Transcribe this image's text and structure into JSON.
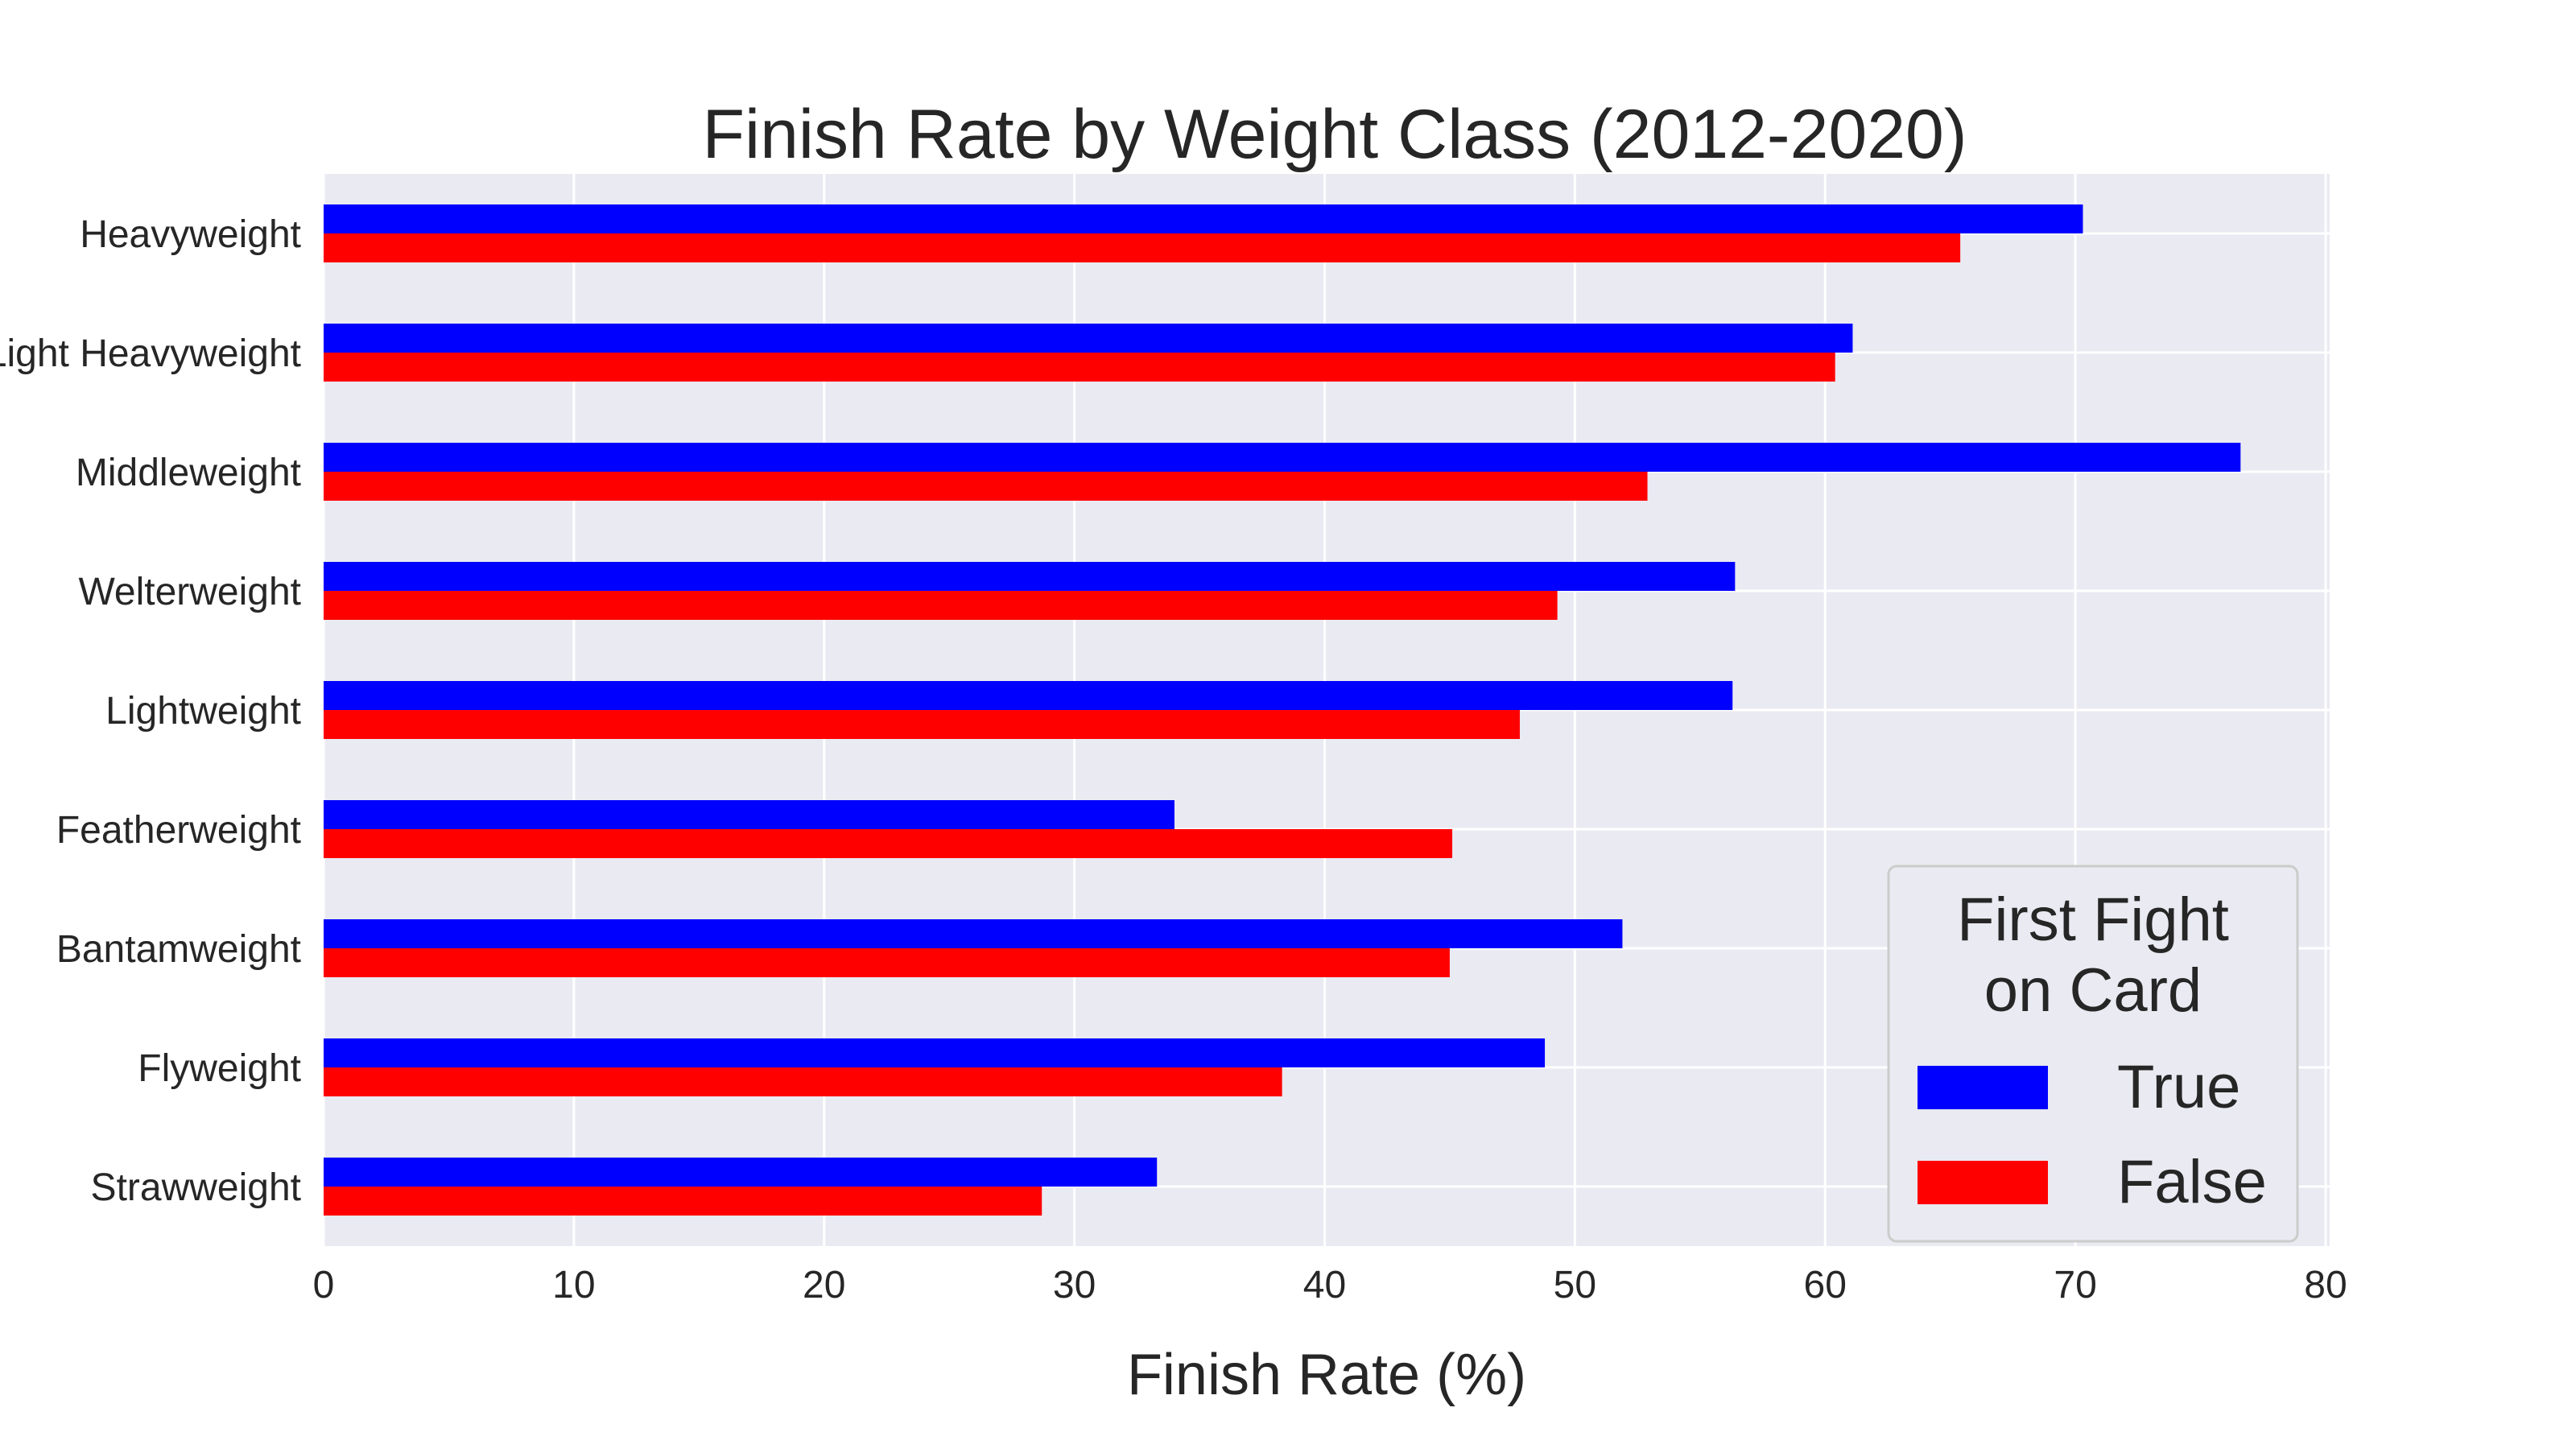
{
  "chart_data": {
    "type": "bar",
    "orientation": "horizontal",
    "title": "Finish Rate by Weight Class (2012-2020)",
    "xlabel": "Finish Rate (%)",
    "ylabel": "",
    "xlim": [
      0,
      80
    ],
    "xticks": [
      0,
      10,
      20,
      30,
      40,
      50,
      60,
      70,
      80
    ],
    "grid": true,
    "categories": [
      "Heavyweight",
      "Light Heavyweight",
      "Middleweight",
      "Welterweight",
      "Lightweight",
      "Featherweight",
      "Bantamweight",
      "Flyweight",
      "Strawweight"
    ],
    "series": [
      {
        "name": "True",
        "color": "#0000ff",
        "values": [
          70.3,
          61.1,
          76.6,
          56.4,
          56.3,
          34.0,
          51.9,
          48.8,
          33.3
        ]
      },
      {
        "name": "False",
        "color": "#ff0000",
        "values": [
          65.4,
          60.4,
          52.9,
          49.3,
          47.8,
          45.1,
          45.0,
          38.3,
          28.7
        ]
      }
    ],
    "legend": {
      "title_lines": [
        "First Fight",
        "on Card"
      ],
      "placement": "lower-right"
    },
    "colors": {
      "plot_background": "#eaeaf2",
      "grid": "#ffffff",
      "text": "#262626"
    }
  }
}
